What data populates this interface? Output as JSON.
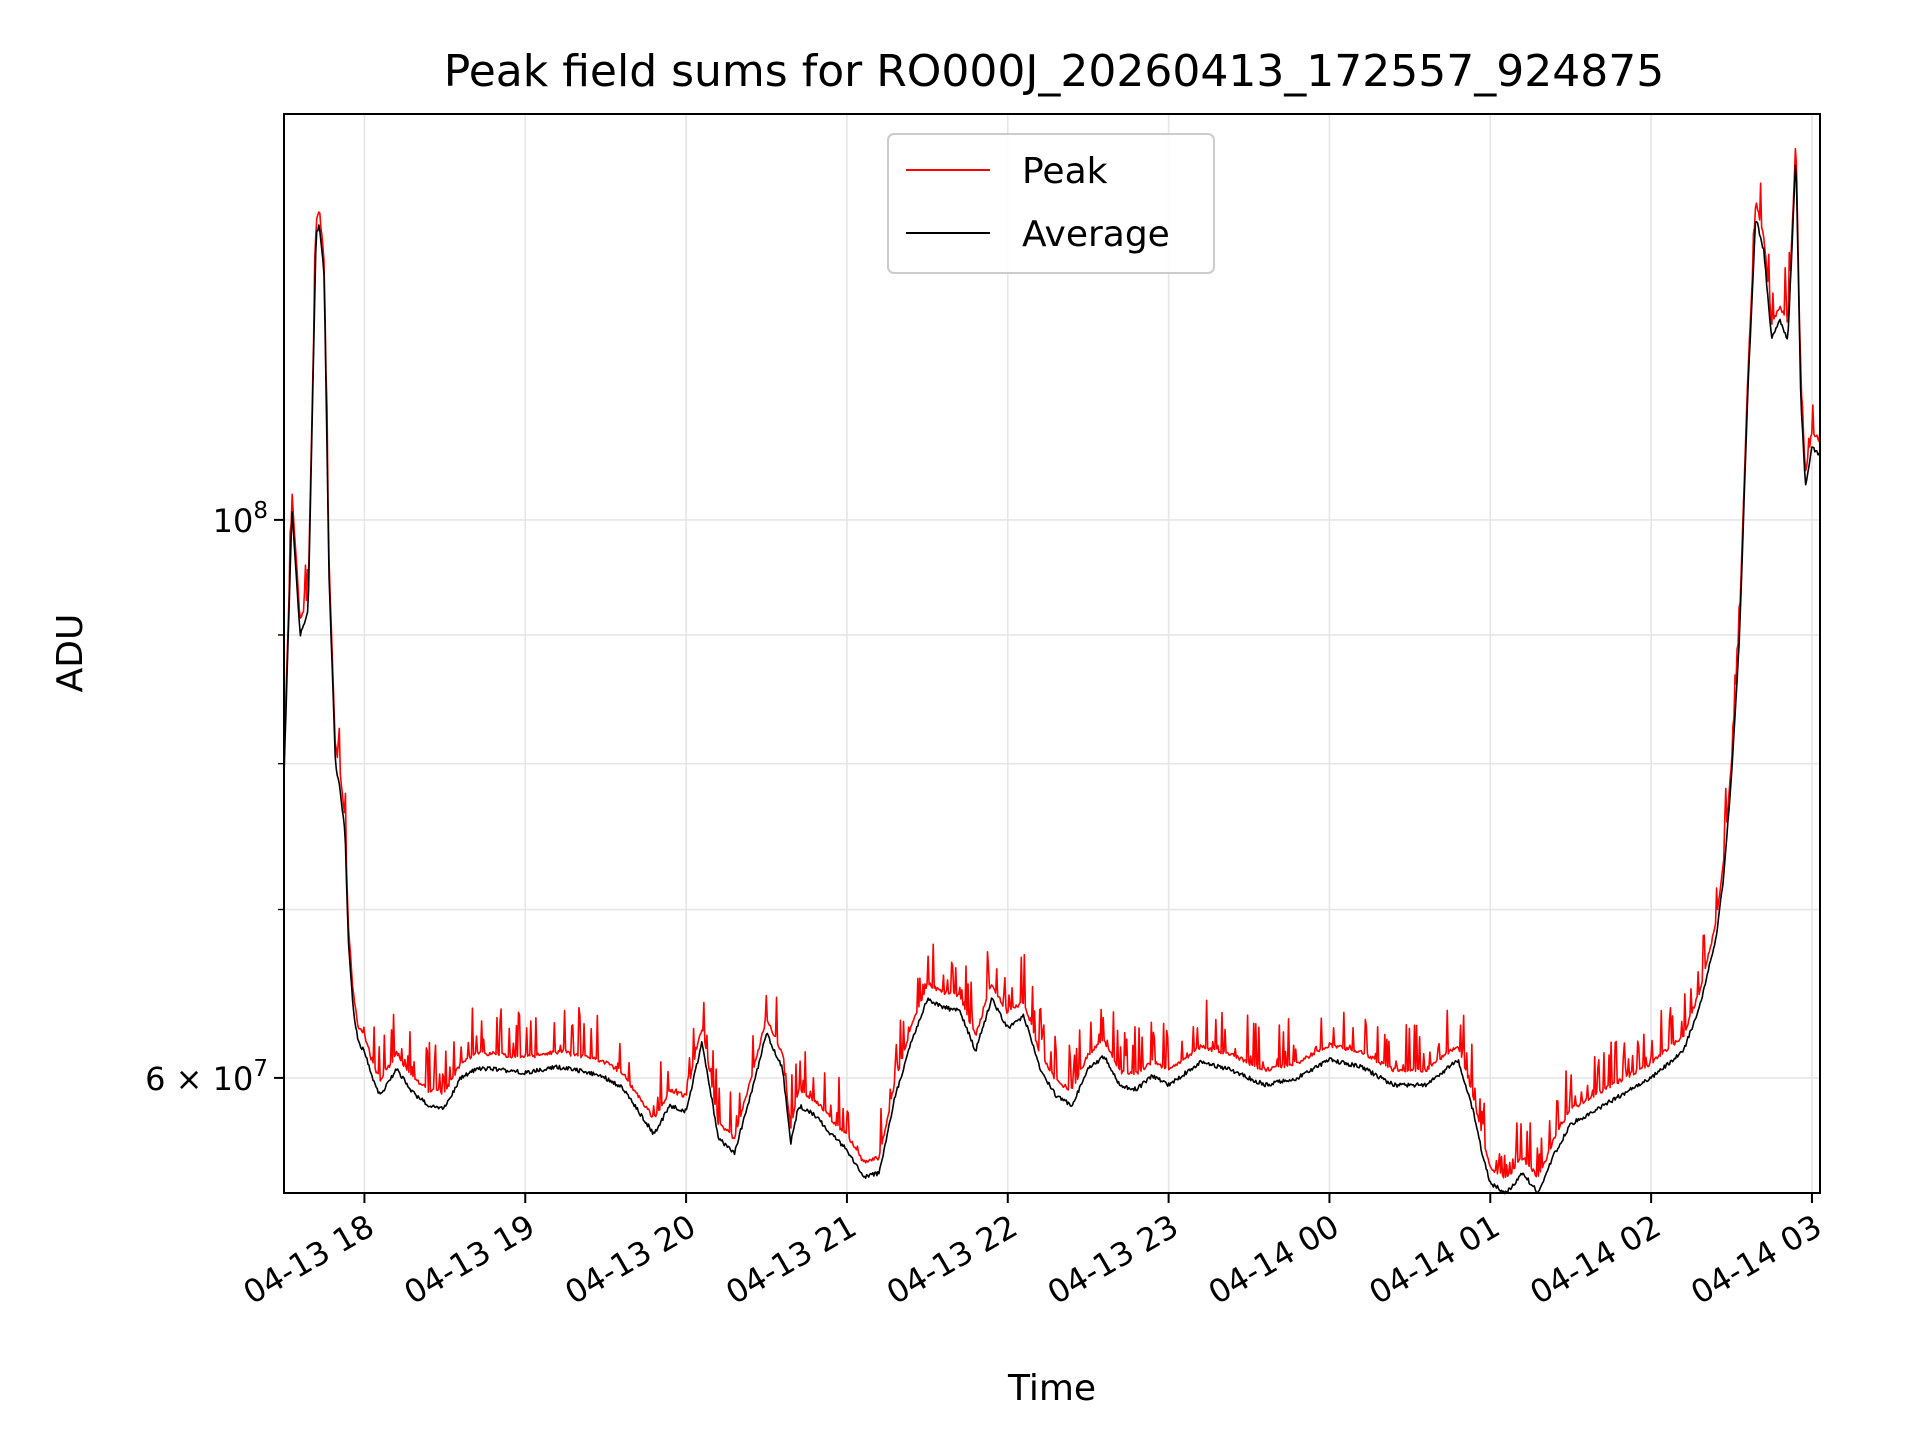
{
  "chart_data": {
    "type": "line",
    "title": "Peak field sums for RO000J_20260413_172557_924875",
    "xlabel": "Time",
    "ylabel": "ADU",
    "yscale": "log",
    "ylim": [
      54000000,
      145000000
    ],
    "xlim": [
      17.5,
      27.05
    ],
    "grid": true,
    "legend_position": "top-center",
    "x_ticks": [
      {
        "value": 18,
        "label": "04-13 18"
      },
      {
        "value": 19,
        "label": "04-13 19"
      },
      {
        "value": 20,
        "label": "04-13 20"
      },
      {
        "value": 21,
        "label": "04-13 21"
      },
      {
        "value": 22,
        "label": "04-13 22"
      },
      {
        "value": 23,
        "label": "04-13 23"
      },
      {
        "value": 24,
        "label": "04-14 00"
      },
      {
        "value": 25,
        "label": "04-14 01"
      },
      {
        "value": 26,
        "label": "04-14 02"
      },
      {
        "value": 27,
        "label": "04-14 03"
      }
    ],
    "y_ticks_major": [
      {
        "value": 60000000,
        "label_base": "6 × 10",
        "label_exp": "7"
      },
      {
        "value": 100000000,
        "label_base": "10",
        "label_exp": "8"
      }
    ],
    "y_ticks_minor": [
      70000000,
      80000000,
      90000000
    ],
    "series": [
      {
        "name": "Peak",
        "color": "#ff0000",
        "role": "peak"
      },
      {
        "name": "Average",
        "color": "#000000",
        "role": "average"
      }
    ],
    "x_hours": [
      17.5,
      17.55,
      17.6,
      17.65,
      17.7,
      17.72,
      17.75,
      17.78,
      17.82,
      17.85,
      17.88,
      17.9,
      17.93,
      17.96,
      18.0,
      18.05,
      18.1,
      18.2,
      18.3,
      18.4,
      18.5,
      18.6,
      18.7,
      18.8,
      18.9,
      19.0,
      19.2,
      19.4,
      19.5,
      19.6,
      19.8,
      19.9,
      20.0,
      20.1,
      20.2,
      20.3,
      20.4,
      20.5,
      20.6,
      20.65,
      20.7,
      20.8,
      20.9,
      21.0,
      21.1,
      21.2,
      21.3,
      21.4,
      21.5,
      21.6,
      21.7,
      21.8,
      21.9,
      22.0,
      22.1,
      22.2,
      22.3,
      22.4,
      22.5,
      22.6,
      22.7,
      22.8,
      22.9,
      23.0,
      23.2,
      23.4,
      23.6,
      23.8,
      24.0,
      24.2,
      24.4,
      24.6,
      24.8,
      24.9,
      24.95,
      25.0,
      25.1,
      25.2,
      25.3,
      25.4,
      25.5,
      25.6,
      25.8,
      26.0,
      26.2,
      26.3,
      26.4,
      26.45,
      26.5,
      26.55,
      26.6,
      26.65,
      26.7,
      26.75,
      26.8,
      26.85,
      26.88,
      26.9,
      26.93,
      26.96,
      27.0,
      27.05
    ],
    "average_values": [
      79000000,
      101000000,
      90000000,
      92000000,
      130000000,
      131000000,
      125000000,
      95000000,
      80000000,
      78000000,
      75000000,
      68000000,
      64000000,
      62000000,
      61500000,
      60000000,
      59000000,
      60500000,
      59200000,
      58500000,
      58400000,
      60000000,
      60500000,
      60500000,
      60400000,
      60300000,
      60600000,
      60300000,
      60000000,
      59500000,
      57000000,
      58500000,
      58200000,
      62000000,
      56800000,
      56000000,
      59000000,
      62500000,
      60500000,
      56500000,
      58500000,
      58000000,
      57000000,
      56200000,
      54800000,
      55000000,
      59000000,
      62000000,
      64500000,
      64000000,
      63800000,
      61500000,
      64500000,
      62800000,
      63500000,
      60500000,
      59000000,
      58500000,
      60500000,
      61200000,
      59500000,
      59400000,
      60100000,
      59600000,
      60900000,
      60400000,
      59600000,
      60000000,
      61000000,
      60600000,
      59600000,
      59600000,
      61000000,
      58000000,
      56000000,
      54500000,
      54000000,
      55000000,
      54000000,
      56000000,
      57500000,
      58000000,
      59000000,
      60000000,
      61500000,
      64000000,
      68000000,
      72000000,
      79000000,
      90000000,
      112000000,
      132000000,
      128000000,
      118000000,
      120000000,
      118000000,
      130000000,
      140000000,
      112000000,
      103000000,
      107000000,
      106000000
    ],
    "peak_factor": 1.012
  }
}
